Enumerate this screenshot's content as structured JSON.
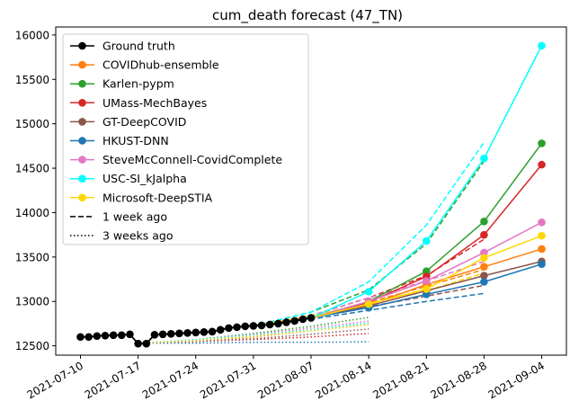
{
  "chart_data": {
    "type": "line",
    "title": "cum_death forecast (47_TN)",
    "xlabel": "",
    "ylabel": "",
    "x_ticks": [
      "2021-07-10",
      "2021-07-17",
      "2021-07-24",
      "2021-07-31",
      "2021-08-07",
      "2021-08-14",
      "2021-08-21",
      "2021-08-28",
      "2021-09-04"
    ],
    "y_ticks": [
      12500,
      13000,
      13500,
      14000,
      14500,
      15000,
      15500,
      16000
    ],
    "xlim": [
      "2021-07-07",
      "2021-09-07"
    ],
    "ylim": [
      12395,
      16090
    ],
    "legend_placement": "top-left",
    "grid": false,
    "legend": [
      {
        "label": "Ground truth",
        "color": "#000000",
        "style": "marker"
      },
      {
        "label": "COVIDhub-ensemble",
        "color": "#ff7f0e",
        "style": "marker"
      },
      {
        "label": "Karlen-pypm",
        "color": "#2ca02c",
        "style": "marker"
      },
      {
        "label": "UMass-MechBayes",
        "color": "#d62728",
        "style": "marker"
      },
      {
        "label": "GT-DeepCOVID",
        "color": "#8c564b",
        "style": "marker"
      },
      {
        "label": "HKUST-DNN",
        "color": "#1f77b4",
        "style": "marker"
      },
      {
        "label": "SteveMcConnell-CovidComplete",
        "color": "#e377c2",
        "style": "marker"
      },
      {
        "label": "USC-SI_kJalpha",
        "color": "#00ffff",
        "style": "marker"
      },
      {
        "label": "Microsoft-DeepSTIA",
        "color": "#ffd700",
        "style": "marker"
      },
      {
        "label": "1 week ago",
        "color": "#000000",
        "style": "dashed"
      },
      {
        "label": "3 weeks ago",
        "color": "#000000",
        "style": "dotted"
      }
    ],
    "ground_truth": {
      "name": "Ground truth",
      "color": "#000000",
      "x": [
        "2021-07-10",
        "2021-07-11",
        "2021-07-12",
        "2021-07-13",
        "2021-07-14",
        "2021-07-15",
        "2021-07-16",
        "2021-07-17",
        "2021-07-18",
        "2021-07-19",
        "2021-07-20",
        "2021-07-21",
        "2021-07-22",
        "2021-07-23",
        "2021-07-24",
        "2021-07-25",
        "2021-07-26",
        "2021-07-27",
        "2021-07-28",
        "2021-07-29",
        "2021-07-30",
        "2021-07-31",
        "2021-08-01",
        "2021-08-02",
        "2021-08-03",
        "2021-08-04",
        "2021-08-05",
        "2021-08-06",
        "2021-08-07"
      ],
      "y": [
        12600,
        12600,
        12610,
        12615,
        12620,
        12620,
        12630,
        12525,
        12525,
        12625,
        12630,
        12635,
        12640,
        12645,
        12650,
        12655,
        12660,
        12680,
        12700,
        12710,
        12720,
        12725,
        12730,
        12740,
        12750,
        12765,
        12780,
        12800,
        12815
      ]
    },
    "forecasts": [
      {
        "name": "COVIDhub-ensemble",
        "color": "#ff7f0e",
        "style": "solid",
        "marker": true,
        "x": [
          "2021-08-07",
          "2021-08-14",
          "2021-08-21",
          "2021-08-28",
          "2021-09-04"
        ],
        "y": [
          12815,
          12960,
          13190,
          13390,
          13590
        ]
      },
      {
        "name": "Karlen-pypm",
        "color": "#2ca02c",
        "style": "solid",
        "marker": true,
        "x": [
          "2021-08-07",
          "2021-08-14",
          "2021-08-21",
          "2021-08-28",
          "2021-09-04"
        ],
        "y": [
          12815,
          13000,
          13340,
          13900,
          14780
        ]
      },
      {
        "name": "UMass-MechBayes",
        "color": "#d62728",
        "style": "solid",
        "marker": true,
        "x": [
          "2021-08-07",
          "2021-08-14",
          "2021-08-21",
          "2021-08-28",
          "2021-09-04"
        ],
        "y": [
          12815,
          12990,
          13280,
          13750,
          14540
        ]
      },
      {
        "name": "GT-DeepCOVID",
        "color": "#8c564b",
        "style": "solid",
        "marker": true,
        "x": [
          "2021-08-07",
          "2021-08-14",
          "2021-08-21",
          "2021-08-28",
          "2021-09-04"
        ],
        "y": [
          12815,
          12950,
          13120,
          13290,
          13450
        ]
      },
      {
        "name": "HKUST-DNN",
        "color": "#1f77b4",
        "style": "solid",
        "marker": true,
        "x": [
          "2021-08-07",
          "2021-08-14",
          "2021-08-21",
          "2021-08-28",
          "2021-09-04"
        ],
        "y": [
          12815,
          12930,
          13080,
          13220,
          13420
        ]
      },
      {
        "name": "SteveMcConnell-CovidComplete",
        "color": "#e377c2",
        "style": "solid",
        "marker": true,
        "x": [
          "2021-08-07",
          "2021-08-14",
          "2021-08-21",
          "2021-08-28",
          "2021-09-04"
        ],
        "y": [
          12815,
          13000,
          13230,
          13550,
          13890
        ]
      },
      {
        "name": "USC-SI_kJalpha",
        "color": "#00ffff",
        "style": "solid",
        "marker": true,
        "x": [
          "2021-08-07",
          "2021-08-14",
          "2021-08-21",
          "2021-08-28",
          "2021-09-04"
        ],
        "y": [
          12815,
          13110,
          13680,
          14610,
          15880
        ]
      },
      {
        "name": "Microsoft-DeepSTIA",
        "color": "#ffd700",
        "style": "solid",
        "marker": true,
        "x": [
          "2021-08-07",
          "2021-08-14",
          "2021-08-21",
          "2021-08-28",
          "2021-09-04"
        ],
        "y": [
          12815,
          12970,
          13140,
          13490,
          13740
        ]
      },
      {
        "name": "COVIDhub-ensemble",
        "color": "#ff7f0e",
        "style": "dashed",
        "x": [
          "2021-07-31",
          "2021-08-07",
          "2021-08-14",
          "2021-08-21",
          "2021-08-28"
        ],
        "y": [
          12725,
          12820,
          12990,
          13170,
          13360
        ]
      },
      {
        "name": "Karlen-pypm",
        "color": "#2ca02c",
        "style": "dashed",
        "x": [
          "2021-07-31",
          "2021-08-07",
          "2021-08-14",
          "2021-08-21",
          "2021-08-28"
        ],
        "y": [
          12725,
          12880,
          13130,
          13650,
          14580
        ]
      },
      {
        "name": "UMass-MechBayes",
        "color": "#d62728",
        "style": "dashed",
        "x": [
          "2021-07-31",
          "2021-08-07",
          "2021-08-14",
          "2021-08-21",
          "2021-08-28"
        ],
        "y": [
          12725,
          12840,
          13040,
          13290,
          13700
        ]
      },
      {
        "name": "GT-DeepCOVID",
        "color": "#8c564b",
        "style": "dashed",
        "x": [
          "2021-07-31",
          "2021-08-07",
          "2021-08-14",
          "2021-08-21",
          "2021-08-28"
        ],
        "y": [
          12725,
          12820,
          12940,
          13060,
          13180
        ]
      },
      {
        "name": "HKUST-DNN",
        "color": "#1f77b4",
        "style": "dashed",
        "x": [
          "2021-07-31",
          "2021-08-07",
          "2021-08-14",
          "2021-08-21",
          "2021-08-28"
        ],
        "y": [
          12725,
          12800,
          12900,
          13000,
          13090
        ]
      },
      {
        "name": "SteveMcConnell-CovidComplete",
        "color": "#e377c2",
        "style": "dashed",
        "x": [
          "2021-07-31",
          "2021-08-07",
          "2021-08-14",
          "2021-08-21",
          "2021-08-28"
        ],
        "y": [
          12725,
          12840,
          13040,
          13230,
          13450
        ]
      },
      {
        "name": "USC-SI_kJalpha",
        "color": "#00ffff",
        "style": "dashed",
        "x": [
          "2021-07-31",
          "2021-08-07",
          "2021-08-14",
          "2021-08-21",
          "2021-08-28"
        ],
        "y": [
          12725,
          12880,
          13220,
          13860,
          14790
        ]
      },
      {
        "name": "Microsoft-DeepSTIA",
        "color": "#ffd700",
        "style": "dashed",
        "x": [
          "2021-07-31",
          "2021-08-07",
          "2021-08-14",
          "2021-08-21",
          "2021-08-28"
        ],
        "y": [
          12725,
          12840,
          12980,
          13120,
          13320
        ]
      },
      {
        "name": "COVIDhub-ensemble",
        "color": "#ff7f0e",
        "style": "dotted",
        "x": [
          "2021-07-17",
          "2021-07-24",
          "2021-07-31",
          "2021-08-07",
          "2021-08-14"
        ],
        "y": [
          12530,
          12550,
          12600,
          12670,
          12740
        ]
      },
      {
        "name": "Karlen-pypm",
        "color": "#2ca02c",
        "style": "dotted",
        "x": [
          "2021-07-17",
          "2021-07-24",
          "2021-07-31",
          "2021-08-07",
          "2021-08-14"
        ],
        "y": [
          12530,
          12570,
          12640,
          12720,
          12820
        ]
      },
      {
        "name": "UMass-MechBayes",
        "color": "#d62728",
        "style": "dotted",
        "x": [
          "2021-07-17",
          "2021-07-24",
          "2021-07-31",
          "2021-08-07",
          "2021-08-14"
        ],
        "y": [
          12530,
          12550,
          12570,
          12600,
          12640
        ]
      },
      {
        "name": "GT-DeepCOVID",
        "color": "#8c564b",
        "style": "dotted",
        "x": [
          "2021-07-17",
          "2021-07-24",
          "2021-07-31",
          "2021-08-07",
          "2021-08-14"
        ],
        "y": [
          12530,
          12550,
          12580,
          12630,
          12690
        ]
      },
      {
        "name": "HKUST-DNN",
        "color": "#1f77b4",
        "style": "dotted",
        "x": [
          "2021-07-17",
          "2021-07-24",
          "2021-07-31",
          "2021-08-07",
          "2021-08-14"
        ],
        "y": [
          12530,
          12530,
          12540,
          12540,
          12545
        ]
      },
      {
        "name": "SteveMcConnell-CovidComplete",
        "color": "#e377c2",
        "style": "dotted",
        "x": [
          "2021-07-17",
          "2021-07-24",
          "2021-07-31",
          "2021-08-07",
          "2021-08-14"
        ],
        "y": [
          12530,
          12570,
          12630,
          12700,
          12780
        ]
      },
      {
        "name": "USC-SI_kJalpha",
        "color": "#00ffff",
        "style": "dotted",
        "x": [
          "2021-07-17",
          "2021-07-24",
          "2021-07-31",
          "2021-08-07",
          "2021-08-14"
        ],
        "y": [
          12530,
          12570,
          12620,
          12680,
          12760
        ]
      },
      {
        "name": "Microsoft-DeepSTIA",
        "color": "#ffd700",
        "style": "dotted",
        "x": [
          "2021-07-17",
          "2021-07-24",
          "2021-07-31",
          "2021-08-07",
          "2021-08-14"
        ],
        "y": [
          12530,
          12560,
          12610,
          12670,
          12740
        ]
      }
    ]
  }
}
